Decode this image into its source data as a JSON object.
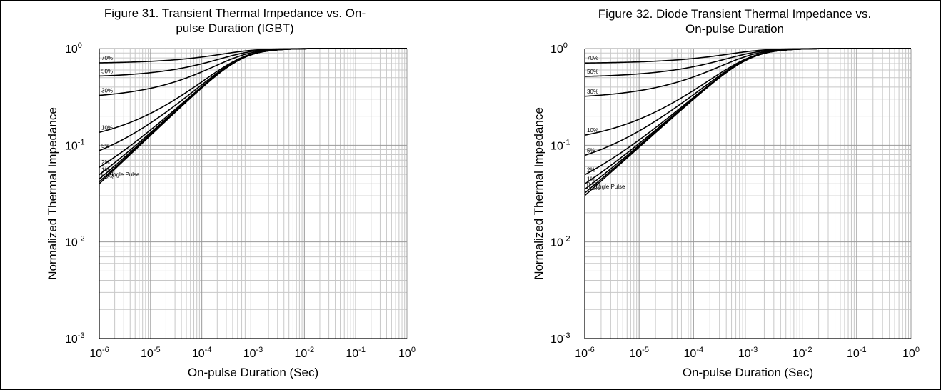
{
  "chart_data": [
    {
      "type": "line",
      "title": "Figure 31. Transient Thermal Impedance vs. On-pulse Duration (IGBT)",
      "title_lines": [
        "Figure 31. Transient Thermal Impedance vs. On-",
        "pulse Duration (IGBT)"
      ],
      "xlabel": "On-pulse Duration (Sec)",
      "ylabel": "Normalized Thermal Impedance",
      "x_scale": "log",
      "y_scale": "log",
      "xlim": [
        1e-06,
        1
      ],
      "ylim": [
        0.001,
        1
      ],
      "x_ticks": [
        {
          "base": "10",
          "exp": "-6"
        },
        {
          "base": "10",
          "exp": "-5"
        },
        {
          "base": "10",
          "exp": "-4"
        },
        {
          "base": "10",
          "exp": "-3"
        },
        {
          "base": "10",
          "exp": "-2"
        },
        {
          "base": "10",
          "exp": "-1"
        },
        {
          "base": "10",
          "exp": "0"
        }
      ],
      "y_ticks": [
        {
          "base": "10",
          "exp": "0"
        },
        {
          "base": "10",
          "exp": "-1"
        },
        {
          "base": "10",
          "exp": "-2"
        },
        {
          "base": "10",
          "exp": "-3"
        }
      ],
      "grid": true,
      "legend": "none",
      "tau": 0.000625,
      "series": [
        {
          "name": "70%",
          "d": 0.7
        },
        {
          "name": "50%",
          "d": 0.5
        },
        {
          "name": "30%",
          "d": 0.3
        },
        {
          "name": "10%",
          "d": 0.1
        },
        {
          "name": "5%",
          "d": 0.05
        },
        {
          "name": "2%",
          "d": 0.02
        },
        {
          "name": "1%",
          "d": 0.01
        },
        {
          "name": "0.5%",
          "d": 0.005
        },
        {
          "name": "0.2%",
          "d": 0.002
        },
        {
          "name": "Single Pulse",
          "d": 0
        }
      ]
    },
    {
      "type": "line",
      "title": "Figure 32. Diode Transient Thermal Impedance vs. On-pulse Duration",
      "title_lines": [
        "Figure 32. Diode Transient Thermal Impedance vs.",
        "On-pulse Duration"
      ],
      "xlabel": "On-pulse Duration (Sec)",
      "ylabel": "Normalized Thermal Impedance",
      "x_scale": "log",
      "y_scale": "log",
      "xlim": [
        1e-06,
        1
      ],
      "ylim": [
        0.001,
        1
      ],
      "x_ticks": [
        {
          "base": "10",
          "exp": "-6"
        },
        {
          "base": "10",
          "exp": "-5"
        },
        {
          "base": "10",
          "exp": "-4"
        },
        {
          "base": "10",
          "exp": "-3"
        },
        {
          "base": "10",
          "exp": "-2"
        },
        {
          "base": "10",
          "exp": "-1"
        },
        {
          "base": "10",
          "exp": "0"
        }
      ],
      "y_ticks": [
        {
          "base": "10",
          "exp": "0"
        },
        {
          "base": "10",
          "exp": "-1"
        },
        {
          "base": "10",
          "exp": "-2"
        },
        {
          "base": "10",
          "exp": "-3"
        }
      ],
      "grid": true,
      "legend": "none",
      "tau": 0.0011,
      "series": [
        {
          "name": "70%",
          "d": 0.7
        },
        {
          "name": "50%",
          "d": 0.5
        },
        {
          "name": "30%",
          "d": 0.3
        },
        {
          "name": "10%",
          "d": 0.1
        },
        {
          "name": "5%",
          "d": 0.05
        },
        {
          "name": "2%",
          "d": 0.02
        },
        {
          "name": "1%",
          "d": 0.01
        },
        {
          "name": "0.5%",
          "d": 0.005
        },
        {
          "name": "0.2%",
          "d": 0.002
        },
        {
          "name": "Single Pulse",
          "d": 0
        }
      ]
    }
  ]
}
